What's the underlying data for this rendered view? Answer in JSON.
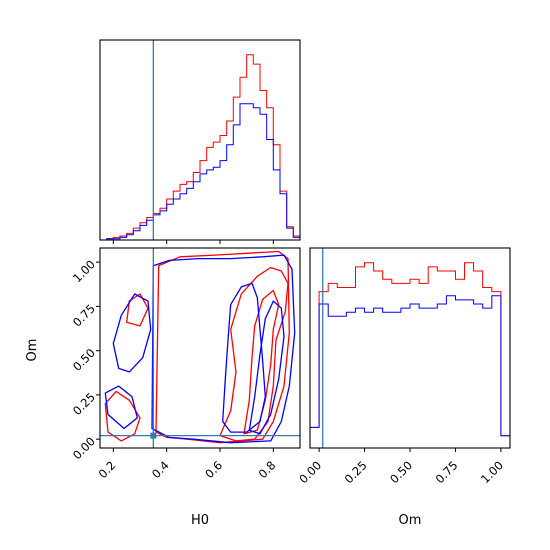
{
  "chart_data": {
    "type": "corner",
    "parameters": [
      "H0",
      "Om"
    ],
    "truth": {
      "H0": 0.35,
      "Om": 0.02,
      "color": "#3a78b5"
    },
    "series_colors": {
      "red": "#ff0000",
      "blue": "#0000ff"
    },
    "panels": [
      {
        "kind": "hist",
        "parameter": "H0",
        "xlim": [
          0.15,
          0.9
        ],
        "x_ticks": [
          0.2,
          0.4,
          0.6,
          0.8
        ],
        "bin_edges": [
          0.15,
          0.175,
          0.2,
          0.225,
          0.25,
          0.275,
          0.3,
          0.325,
          0.35,
          0.375,
          0.4,
          0.425,
          0.45,
          0.475,
          0.5,
          0.525,
          0.55,
          0.575,
          0.6,
          0.625,
          0.65,
          0.675,
          0.7,
          0.725,
          0.75,
          0.775,
          0.8,
          0.825,
          0.85,
          0.875,
          0.9
        ],
        "series": [
          {
            "color": "red",
            "counts": [
              0,
              1,
              2,
              3,
              5,
              9,
              13,
              17,
              20,
              24,
              31,
              37,
              42,
              44,
              51,
              60,
              70,
              74,
              79,
              90,
              108,
              123,
              140,
              133,
              113,
              100,
              72,
              37,
              10,
              3
            ]
          },
          {
            "color": "blue",
            "counts": [
              0,
              1,
              1,
              2,
              4,
              7,
              11,
              15,
              19,
              22,
              27,
              31,
              35,
              39,
              44,
              50,
              53,
              55,
              60,
              72,
              87,
              103,
              103,
              100,
              95,
              76,
              53,
              35,
              9,
              2
            ]
          }
        ]
      },
      {
        "kind": "hist",
        "parameter": "Om",
        "xlim": [
          -0.05,
          1.05
        ],
        "x_ticks": [
          0.0,
          0.25,
          0.5,
          0.75,
          1.0
        ],
        "x_tick_labels": [
          "0.00",
          "0.25",
          "0.50",
          "0.75",
          "1.00"
        ],
        "bin_edges": [
          -0.05,
          0.0,
          0.05,
          0.1,
          0.15,
          0.2,
          0.25,
          0.3,
          0.35,
          0.4,
          0.45,
          0.5,
          0.55,
          0.6,
          0.65,
          0.7,
          0.75,
          0.8,
          0.85,
          0.9,
          0.95,
          1.0,
          1.05
        ],
        "series": [
          {
            "color": "red",
            "counts": [
              5,
              38,
              40,
              39,
              39,
              44,
              45,
              43,
              41,
              40,
              40,
              41,
              40,
              44,
              43,
              43,
              41,
              45,
              43,
              39,
              38,
              3
            ]
          },
          {
            "color": "blue",
            "counts": [
              5,
              35,
              32,
              32,
              33,
              34,
              33,
              34,
              33,
              33,
              34,
              35,
              34,
              34,
              35,
              37,
              36,
              36,
              35,
              34,
              37,
              3
            ]
          }
        ]
      },
      {
        "kind": "contour",
        "x_parameter": "H0",
        "y_parameter": "Om",
        "xlim": [
          0.15,
          0.9
        ],
        "ylim": [
          -0.05,
          1.08
        ],
        "x_ticks": [
          0.2,
          0.4,
          0.6,
          0.8
        ],
        "y_ticks": [
          0.0,
          0.25,
          0.5,
          0.75,
          1.0
        ],
        "y_tick_labels": [
          "0.00",
          "0.25",
          "0.50",
          "0.75",
          "1.00"
        ],
        "contours": [
          {
            "color": "red",
            "points": [
              [
                0.36,
                0.04
              ],
              [
                0.37,
                0.98
              ],
              [
                0.45,
                1.03
              ],
              [
                0.58,
                1.04
              ],
              [
                0.7,
                1.05
              ],
              [
                0.82,
                1.06
              ],
              [
                0.855,
                1.02
              ],
              [
                0.86,
                0.6
              ],
              [
                0.84,
                0.3
              ],
              [
                0.8,
                0.1
              ],
              [
                0.76,
                0.0
              ],
              [
                0.6,
                -0.02
              ],
              [
                0.48,
                0.0
              ],
              [
                0.4,
                0.01
              ]
            ]
          },
          {
            "color": "red",
            "points": [
              [
                0.6,
                0.02
              ],
              [
                0.64,
                0.16
              ],
              [
                0.66,
                0.38
              ],
              [
                0.64,
                0.62
              ],
              [
                0.68,
                0.82
              ],
              [
                0.74,
                0.92
              ],
              [
                0.79,
                0.97
              ],
              [
                0.83,
                0.95
              ],
              [
                0.855,
                0.88
              ],
              [
                0.845,
                0.72
              ],
              [
                0.81,
                0.56
              ],
              [
                0.8,
                0.3
              ],
              [
                0.78,
                0.1
              ],
              [
                0.73,
                0.0
              ],
              [
                0.66,
                -0.01
              ]
            ]
          },
          {
            "color": "red",
            "points": [
              [
                0.69,
                0.03
              ],
              [
                0.71,
                0.22
              ],
              [
                0.72,
                0.46
              ],
              [
                0.73,
                0.64
              ],
              [
                0.76,
                0.79
              ],
              [
                0.8,
                0.84
              ],
              [
                0.82,
                0.76
              ],
              [
                0.8,
                0.62
              ],
              [
                0.79,
                0.42
              ],
              [
                0.77,
                0.22
              ],
              [
                0.74,
                0.05
              ]
            ]
          },
          {
            "color": "red",
            "points": [
              [
                0.18,
                0.04
              ],
              [
                0.17,
                0.2
              ],
              [
                0.21,
                0.27
              ],
              [
                0.26,
                0.22
              ],
              [
                0.3,
                0.12
              ],
              [
                0.28,
                0.03
              ],
              [
                0.23,
                -0.01
              ]
            ]
          },
          {
            "color": "red",
            "points": [
              [
                0.25,
                0.66
              ],
              [
                0.26,
                0.78
              ],
              [
                0.3,
                0.82
              ],
              [
                0.33,
                0.74
              ],
              [
                0.3,
                0.64
              ]
            ]
          },
          {
            "color": "blue",
            "points": [
              [
                0.345,
                0.06
              ],
              [
                0.35,
                0.98
              ],
              [
                0.41,
                1.01
              ],
              [
                0.52,
                1.02
              ],
              [
                0.64,
                1.02
              ],
              [
                0.76,
                1.03
              ],
              [
                0.84,
                1.04
              ],
              [
                0.87,
                0.96
              ],
              [
                0.88,
                0.6
              ],
              [
                0.86,
                0.3
              ],
              [
                0.83,
                0.1
              ],
              [
                0.79,
                -0.01
              ],
              [
                0.64,
                -0.02
              ],
              [
                0.5,
                0.0
              ],
              [
                0.41,
                0.01
              ]
            ]
          },
          {
            "color": "blue",
            "points": [
              [
                0.61,
                0.1
              ],
              [
                0.62,
                0.34
              ],
              [
                0.63,
                0.56
              ],
              [
                0.64,
                0.76
              ],
              [
                0.68,
                0.86
              ],
              [
                0.72,
                0.88
              ],
              [
                0.74,
                0.8
              ],
              [
                0.75,
                0.62
              ],
              [
                0.76,
                0.44
              ],
              [
                0.77,
                0.24
              ],
              [
                0.75,
                0.1
              ],
              [
                0.7,
                0.04
              ],
              [
                0.64,
                0.04
              ]
            ]
          },
          {
            "color": "blue",
            "points": [
              [
                0.71,
                0.05
              ],
              [
                0.73,
                0.24
              ],
              [
                0.75,
                0.48
              ],
              [
                0.77,
                0.68
              ],
              [
                0.8,
                0.78
              ],
              [
                0.83,
                0.74
              ],
              [
                0.84,
                0.58
              ],
              [
                0.82,
                0.34
              ],
              [
                0.79,
                0.14
              ],
              [
                0.75,
                0.03
              ]
            ]
          },
          {
            "color": "blue",
            "points": [
              [
                0.22,
                0.4
              ],
              [
                0.2,
                0.54
              ],
              [
                0.23,
                0.7
              ],
              [
                0.28,
                0.82
              ],
              [
                0.33,
                0.78
              ],
              [
                0.34,
                0.62
              ],
              [
                0.31,
                0.46
              ],
              [
                0.26,
                0.38
              ]
            ]
          },
          {
            "color": "blue",
            "points": [
              [
                0.18,
                0.14
              ],
              [
                0.17,
                0.26
              ],
              [
                0.22,
                0.3
              ],
              [
                0.27,
                0.24
              ],
              [
                0.29,
                0.12
              ],
              [
                0.24,
                0.06
              ]
            ]
          }
        ]
      }
    ]
  }
}
